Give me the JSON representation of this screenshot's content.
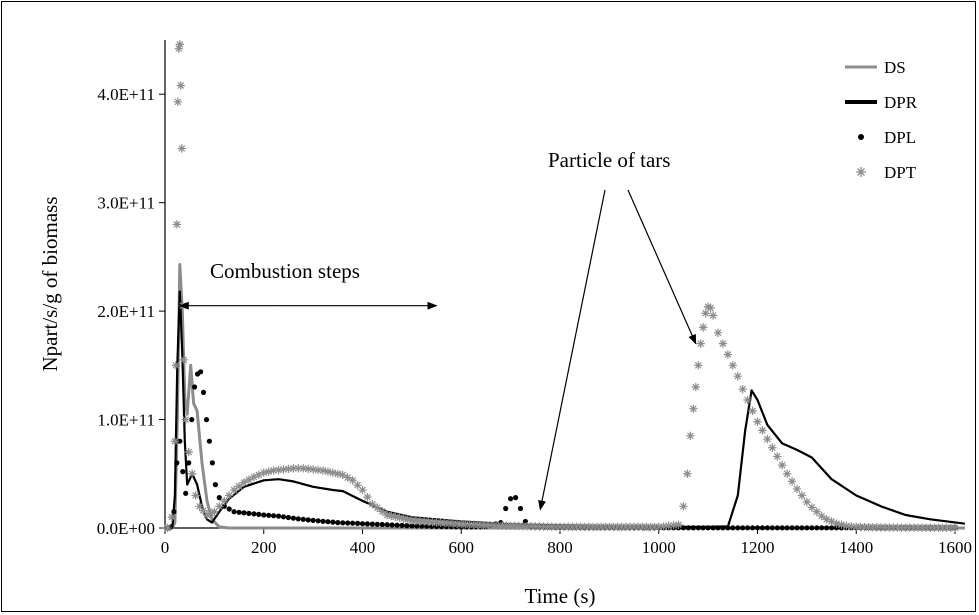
{
  "chart_data": {
    "type": "line",
    "title": "",
    "xlabel": "Time (s)",
    "ylabel": "Npart/s/g of biomass",
    "xlim": [
      0,
      1600
    ],
    "ylim": [
      0,
      450000000000
    ],
    "x_ticks": [
      "0",
      "200",
      "400",
      "600",
      "800",
      "1000",
      "1200",
      "1400",
      "1600"
    ],
    "y_ticks": [
      "0.0E+00",
      "1.0E+11",
      "2.0E+11",
      "3.0E+11",
      "4.0E+11"
    ],
    "legend_position": "top-right",
    "grid": false,
    "series": [
      {
        "name": "DS",
        "style": "line",
        "color": "#8c8c8c",
        "points": [
          [
            0,
            0
          ],
          [
            15,
            0
          ],
          [
            20,
            5000000000
          ],
          [
            25,
            100000000000
          ],
          [
            30,
            243000000000
          ],
          [
            35,
            200000000000
          ],
          [
            40,
            120000000000
          ],
          [
            45,
            105000000000
          ],
          [
            52,
            150000000000
          ],
          [
            58,
            115000000000
          ],
          [
            65,
            108000000000
          ],
          [
            75,
            60000000000
          ],
          [
            85,
            25000000000
          ],
          [
            95,
            8000000000
          ],
          [
            110,
            1000000000
          ],
          [
            130,
            0
          ],
          [
            1620,
            0
          ]
        ]
      },
      {
        "name": "DPR",
        "style": "line",
        "color": "#000000",
        "points": [
          [
            0,
            0
          ],
          [
            15,
            1000000000
          ],
          [
            20,
            30000000000
          ],
          [
            25,
            150000000000
          ],
          [
            30,
            218000000000
          ],
          [
            35,
            160000000000
          ],
          [
            40,
            80000000000
          ],
          [
            45,
            40000000000
          ],
          [
            55,
            50000000000
          ],
          [
            65,
            40000000000
          ],
          [
            75,
            20000000000
          ],
          [
            85,
            8000000000
          ],
          [
            95,
            5000000000
          ],
          [
            110,
            15000000000
          ],
          [
            130,
            27000000000
          ],
          [
            160,
            38000000000
          ],
          [
            200,
            44000000000
          ],
          [
            230,
            45000000000
          ],
          [
            260,
            43000000000
          ],
          [
            300,
            38000000000
          ],
          [
            340,
            35000000000
          ],
          [
            360,
            34000000000
          ],
          [
            400,
            25000000000
          ],
          [
            450,
            15000000000
          ],
          [
            500,
            10000000000
          ],
          [
            600,
            6000000000
          ],
          [
            700,
            3500000000
          ],
          [
            800,
            2500000000
          ],
          [
            900,
            1500000000
          ],
          [
            1000,
            1000000000
          ],
          [
            1100,
            1000000000
          ],
          [
            1140,
            1500000000
          ],
          [
            1160,
            30000000000
          ],
          [
            1175,
            90000000000
          ],
          [
            1188,
            127000000000
          ],
          [
            1200,
            118000000000
          ],
          [
            1220,
            95000000000
          ],
          [
            1250,
            78000000000
          ],
          [
            1280,
            72000000000
          ],
          [
            1310,
            65000000000
          ],
          [
            1350,
            45000000000
          ],
          [
            1400,
            30000000000
          ],
          [
            1450,
            20000000000
          ],
          [
            1500,
            12000000000
          ],
          [
            1550,
            8000000000
          ],
          [
            1620,
            4000000000
          ]
        ]
      },
      {
        "name": "DPL",
        "style": "dots",
        "color": "#000000",
        "points": [
          [
            5,
            0
          ],
          [
            12,
            1000000000
          ],
          [
            18,
            15000000000
          ],
          [
            24,
            60000000000
          ],
          [
            30,
            80000000000
          ],
          [
            36,
            52000000000
          ],
          [
            42,
            32000000000
          ],
          [
            48,
            60000000000
          ],
          [
            54,
            100000000000
          ],
          [
            60,
            130000000000
          ],
          [
            66,
            142000000000
          ],
          [
            72,
            144000000000
          ],
          [
            78,
            125000000000
          ],
          [
            84,
            100000000000
          ],
          [
            90,
            80000000000
          ],
          [
            96,
            60000000000
          ],
          [
            102,
            40000000000
          ],
          [
            110,
            28000000000
          ],
          [
            120,
            20000000000
          ],
          [
            140,
            15000000000
          ],
          [
            160,
            14000000000
          ],
          [
            180,
            13000000000
          ],
          [
            200,
            12000000000
          ],
          [
            230,
            11000000000
          ],
          [
            260,
            9000000000
          ],
          [
            300,
            7000000000
          ],
          [
            350,
            5000000000
          ],
          [
            400,
            4000000000
          ],
          [
            450,
            3000000000
          ],
          [
            500,
            2000000000
          ],
          [
            550,
            1500000000
          ],
          [
            600,
            1000000000
          ],
          [
            650,
            1000000000
          ],
          [
            680,
            5000000000
          ],
          [
            690,
            18000000000
          ],
          [
            700,
            27000000000
          ],
          [
            710,
            28000000000
          ],
          [
            720,
            18000000000
          ],
          [
            730,
            6000000000
          ],
          [
            740,
            1000000000
          ],
          [
            800,
            500000000
          ],
          [
            900,
            300000000
          ],
          [
            1000,
            200000000
          ],
          [
            1100,
            200000000
          ],
          [
            1200,
            200000000
          ],
          [
            1300,
            200000000
          ],
          [
            1400,
            200000000
          ],
          [
            1500,
            200000000
          ],
          [
            1600,
            200000000
          ]
        ]
      },
      {
        "name": "DPT",
        "style": "asterisk",
        "color": "#8c8c8c",
        "points": [
          [
            5,
            0
          ],
          [
            14,
            10000000000
          ],
          [
            20,
            80000000000
          ],
          [
            22,
            150000000000
          ],
          [
            24,
            280000000000
          ],
          [
            26,
            393000000000
          ],
          [
            28,
            442000000000
          ],
          [
            30,
            446000000000
          ],
          [
            32,
            408000000000
          ],
          [
            34,
            350000000000
          ],
          [
            36,
            205000000000
          ],
          [
            38,
            155000000000
          ],
          [
            42,
            100000000000
          ],
          [
            48,
            70000000000
          ],
          [
            55,
            50000000000
          ],
          [
            62,
            30000000000
          ],
          [
            70,
            20000000000
          ],
          [
            85,
            12000000000
          ],
          [
            100,
            15000000000
          ],
          [
            120,
            25000000000
          ],
          [
            140,
            35000000000
          ],
          [
            160,
            42000000000
          ],
          [
            180,
            47000000000
          ],
          [
            200,
            51000000000
          ],
          [
            220,
            53000000000
          ],
          [
            240,
            54000000000
          ],
          [
            260,
            55000000000
          ],
          [
            280,
            55000000000
          ],
          [
            300,
            54000000000
          ],
          [
            320,
            53000000000
          ],
          [
            340,
            51000000000
          ],
          [
            360,
            49000000000
          ],
          [
            380,
            44000000000
          ],
          [
            400,
            35000000000
          ],
          [
            420,
            22000000000
          ],
          [
            450,
            12000000000
          ],
          [
            500,
            7000000000
          ],
          [
            550,
            5000000000
          ],
          [
            600,
            3500000000
          ],
          [
            650,
            2500000000
          ],
          [
            700,
            2000000000
          ],
          [
            750,
            1500000000
          ],
          [
            800,
            1000000000
          ],
          [
            850,
            1000000000
          ],
          [
            900,
            1000000000
          ],
          [
            950,
            1000000000
          ],
          [
            1000,
            1000000000
          ],
          [
            1040,
            3000000000
          ],
          [
            1050,
            20000000000
          ],
          [
            1058,
            50000000000
          ],
          [
            1064,
            85000000000
          ],
          [
            1070,
            110000000000
          ],
          [
            1075,
            130000000000
          ],
          [
            1080,
            150000000000
          ],
          [
            1085,
            170000000000
          ],
          [
            1090,
            185000000000
          ],
          [
            1095,
            198000000000
          ],
          [
            1100,
            204000000000
          ],
          [
            1105,
            203000000000
          ],
          [
            1110,
            196000000000
          ],
          [
            1120,
            180000000000
          ],
          [
            1130,
            170000000000
          ],
          [
            1140,
            160000000000
          ],
          [
            1150,
            150000000000
          ],
          [
            1160,
            140000000000
          ],
          [
            1170,
            128000000000
          ],
          [
            1180,
            118000000000
          ],
          [
            1190,
            108000000000
          ],
          [
            1200,
            98000000000
          ],
          [
            1210,
            90000000000
          ],
          [
            1220,
            82000000000
          ],
          [
            1230,
            74000000000
          ],
          [
            1240,
            66000000000
          ],
          [
            1250,
            58000000000
          ],
          [
            1260,
            50000000000
          ],
          [
            1270,
            43000000000
          ],
          [
            1280,
            36000000000
          ],
          [
            1290,
            30000000000
          ],
          [
            1300,
            24000000000
          ],
          [
            1310,
            19000000000
          ],
          [
            1320,
            15000000000
          ],
          [
            1330,
            11000000000
          ],
          [
            1340,
            8000000000
          ],
          [
            1350,
            6000000000
          ],
          [
            1360,
            4000000000
          ],
          [
            1370,
            3000000000
          ],
          [
            1380,
            2000000000
          ],
          [
            1400,
            1000000000
          ],
          [
            1450,
            500000000
          ],
          [
            1500,
            300000000
          ],
          [
            1550,
            200000000
          ],
          [
            1600,
            200000000
          ]
        ]
      }
    ],
    "annotations": [
      {
        "text": "Combustion steps",
        "type": "double-arrow",
        "from_x": 30,
        "to_x": 550,
        "y": 205000000000
      },
      {
        "text": "Particle of tars",
        "type": "arrows",
        "targets": [
          [
            760,
            17000000000
          ],
          [
            1075,
            170000000000
          ]
        ]
      }
    ]
  }
}
